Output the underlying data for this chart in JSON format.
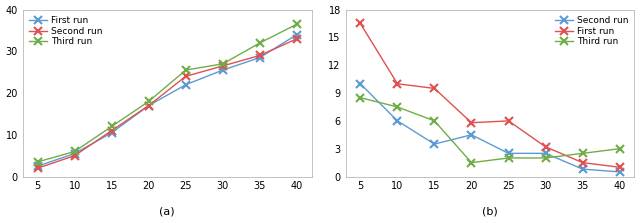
{
  "x": [
    5,
    10,
    15,
    20,
    25,
    30,
    35,
    40
  ],
  "left": {
    "series": [
      {
        "label": "First run",
        "values": [
          2.5,
          5.5,
          10.5,
          17.0,
          22.0,
          25.5,
          28.5,
          34.0
        ],
        "color": "#5b9bd5"
      },
      {
        "label": "Second run",
        "values": [
          2.0,
          5.0,
          11.0,
          17.0,
          24.0,
          26.5,
          29.0,
          33.0
        ],
        "color": "#e05050"
      },
      {
        "label": "Third run",
        "values": [
          3.5,
          6.0,
          12.0,
          18.0,
          25.5,
          27.0,
          32.0,
          36.5
        ],
        "color": "#70ad47"
      }
    ],
    "ylim": [
      0,
      40
    ],
    "yticks": [
      0,
      10,
      20,
      30,
      40
    ],
    "legend_loc": "upper left",
    "label": "(a)"
  },
  "right": {
    "series": [
      {
        "label": "Second run",
        "values": [
          10.0,
          6.0,
          3.5,
          4.5,
          2.5,
          2.5,
          0.8,
          0.5
        ],
        "color": "#5b9bd5"
      },
      {
        "label": "First run",
        "values": [
          16.5,
          10.0,
          9.5,
          5.8,
          6.0,
          3.2,
          1.5,
          1.0
        ],
        "color": "#e05050"
      },
      {
        "label": "Third run",
        "values": [
          8.5,
          7.5,
          6.0,
          1.5,
          2.0,
          2.0,
          2.5,
          3.0
        ],
        "color": "#70ad47"
      }
    ],
    "ylim": [
      0,
      18
    ],
    "yticks": [
      0,
      3,
      6,
      9,
      12,
      15,
      18
    ],
    "legend_loc": "upper right",
    "label": "(b)"
  },
  "xticks": [
    5,
    10,
    15,
    20,
    25,
    30,
    35,
    40
  ],
  "marker": "x",
  "linewidth": 1.0,
  "markersize": 6,
  "markeredgewidth": 1.5,
  "tick_labelsize": 7,
  "legend_fontsize": 6.5,
  "label_fontsize": 8,
  "spine_color": "#aaaaaa",
  "spine_linewidth": 0.5,
  "figsize": [
    6.4,
    2.23
  ],
  "dpi": 100
}
